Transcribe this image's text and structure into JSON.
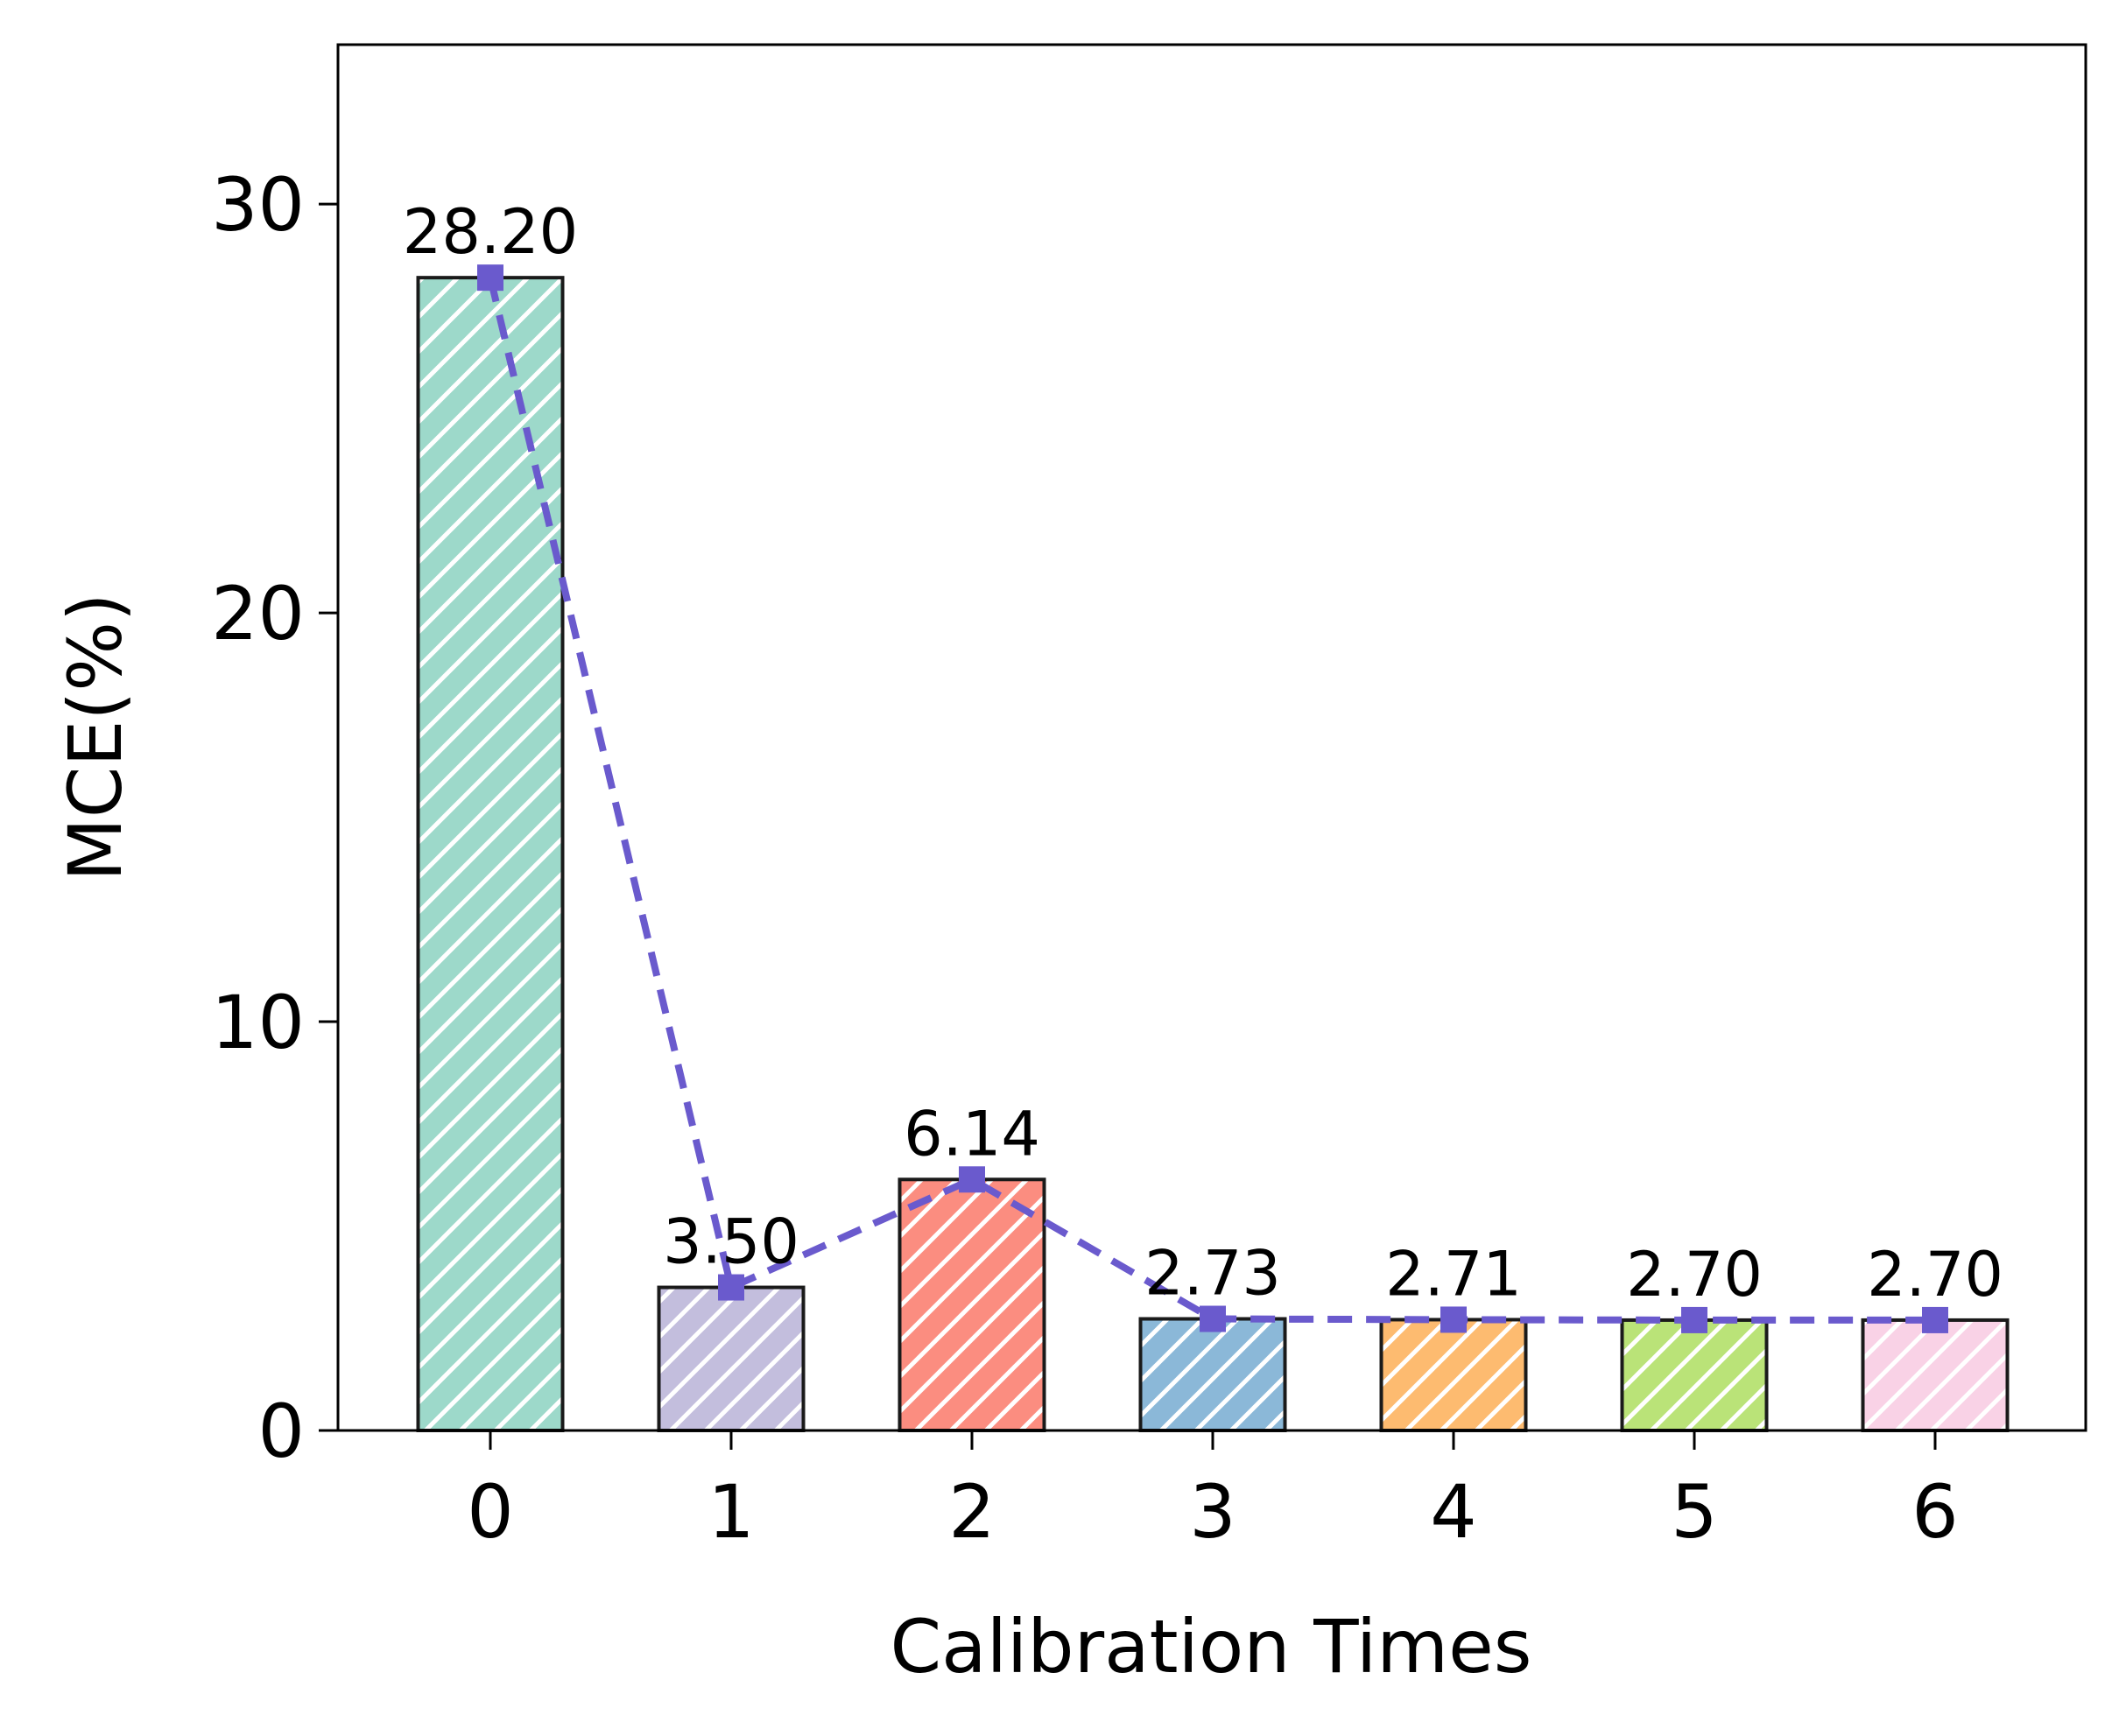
{
  "chart_data": {
    "type": "bar",
    "categories": [
      "0",
      "1",
      "2",
      "3",
      "4",
      "5",
      "6"
    ],
    "values": [
      28.2,
      3.5,
      6.14,
      2.73,
      2.71,
      2.7,
      2.7
    ],
    "data_labels": [
      "28.20",
      "3.50",
      "6.14",
      "2.73",
      "2.71",
      "2.70",
      "2.70"
    ],
    "bar_colors": [
      "#9dd9ca",
      "#c3bedd",
      "#fb8d80",
      "#8bb8d8",
      "#fdbb70",
      "#bae378",
      "#f9d2e6"
    ],
    "bar_hatch": "diagonal",
    "overlay_line": {
      "type": "line",
      "values": [
        28.2,
        3.5,
        6.14,
        2.73,
        2.71,
        2.7,
        2.7
      ],
      "color": "#6a5acd",
      "style": "dashed",
      "marker": "square"
    },
    "title": "",
    "xlabel": "Calibration Times",
    "ylabel": "MCE(%)",
    "ylim": [
      0,
      33.9
    ],
    "yticks": [
      0,
      10,
      20,
      30
    ],
    "ytick_labels": [
      "0",
      "10",
      "20",
      "30"
    ],
    "grid": false,
    "legend": null
  }
}
